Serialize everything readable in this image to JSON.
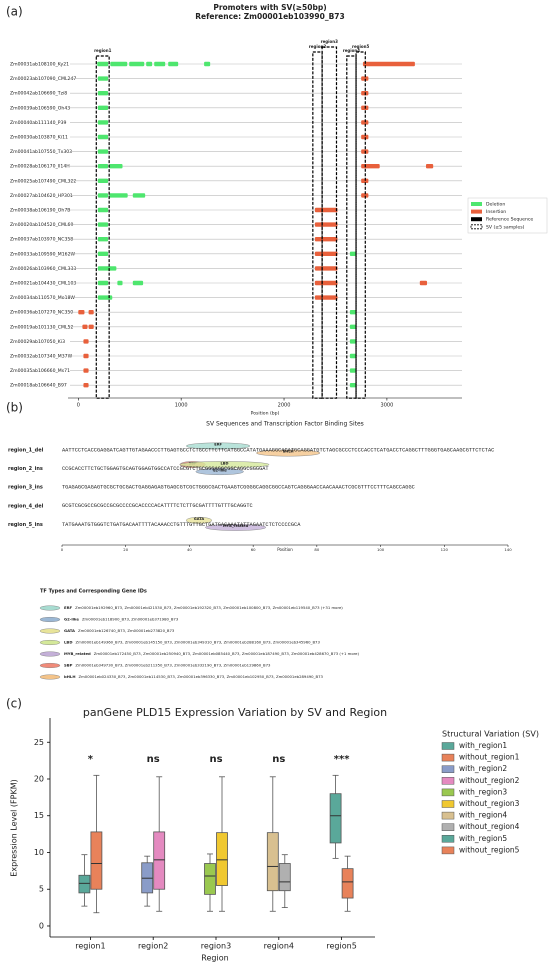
{
  "panel_labels": [
    "(a)",
    "(b)",
    "(c)"
  ],
  "chart_data": [
    {
      "type": "sv-tracks",
      "title": "Promoters with SV(≥50bp)",
      "subtitle": "Reference: Zm00001eb103990_B73",
      "xlabel": "Position (bp)",
      "xlim": [
        -100,
        3730
      ],
      "xticks": [
        0,
        1000,
        2000,
        3000
      ],
      "deletion_color": "#4ee66e",
      "insertion_color": "#e8603c",
      "legend": [
        "Deletion",
        "Insertion",
        "Reference Sequence",
        "SV (≥5 samples)"
      ],
      "regions": [
        {
          "label": "region1",
          "start": 175,
          "end": 300
        },
        {
          "label": "region2",
          "start": 2280,
          "end": 2370
        },
        {
          "label": "region3",
          "start": 2370,
          "end": 2510
        },
        {
          "label": "region4",
          "start": 2610,
          "end": 2700
        },
        {
          "label": "region5",
          "start": 2700,
          "end": 2790
        }
      ],
      "rows": [
        {
          "name": "Zm00031ab108100_Ky21",
          "deletions": [
            [
              184,
              291
            ],
            [
              311,
              476
            ],
            [
              495,
              641
            ],
            [
              660,
              718
            ],
            [
              738,
              845
            ],
            [
              874,
              971
            ],
            [
              1223,
              1282
            ]
          ],
          "insertions": [
            [
              2767,
              3272
            ]
          ]
        },
        {
          "name": "Zm00023ab107090_CML247",
          "deletions": [
            [
              190,
              290
            ]
          ],
          "insertions": [
            [
              2750,
              2820
            ]
          ]
        },
        {
          "name": "Zm00042ab106690_Tzi8",
          "deletions": [
            [
              190,
              290
            ]
          ],
          "insertions": [
            [
              2750,
              2820
            ]
          ]
        },
        {
          "name": "Zm00039ab106590_Oh43",
          "deletions": [
            [
              190,
              290
            ]
          ],
          "insertions": [
            [
              2750,
              2820
            ]
          ]
        },
        {
          "name": "Zm00040ab111140_P39",
          "deletions": [
            [
              190,
              290
            ]
          ],
          "insertions": [
            [
              2750,
              2820
            ]
          ]
        },
        {
          "name": "Zm00030ab103870_Ki11",
          "deletions": [
            [
              190,
              290
            ]
          ],
          "insertions": [
            [
              2750,
              2820
            ]
          ]
        },
        {
          "name": "Zm00041ab107550_Tx303",
          "deletions": [
            [
              190,
              290
            ]
          ],
          "insertions": [
            [
              2750,
              2820
            ]
          ]
        },
        {
          "name": "Zm00028ab106170_Il14H",
          "deletions": [
            [
              190,
              290
            ],
            [
              300,
              430
            ]
          ],
          "insertions": [
            [
              2750,
              2930
            ],
            [
              3380,
              3450
            ]
          ]
        },
        {
          "name": "Zm00025ab107490_CML322",
          "deletions": [
            [
              190,
              290
            ]
          ],
          "insertions": [
            [
              2750,
              2820
            ]
          ]
        },
        {
          "name": "Zm00027ab104620_HP301",
          "deletions": [
            [
              190,
              290
            ],
            [
              300,
              480
            ],
            [
              530,
              650
            ]
          ],
          "insertions": [
            [
              2750,
              2820
            ]
          ]
        },
        {
          "name": "Zm00038ab106190_Oh7B",
          "deletions": [
            [
              190,
              290
            ]
          ],
          "insertions": [
            [
              2300,
              2520
            ]
          ]
        },
        {
          "name": "Zm00020ab104520_CML69",
          "deletions": [
            [
              190,
              290
            ]
          ],
          "insertions": [
            [
              2300,
              2520
            ]
          ]
        },
        {
          "name": "Zm00037ab103970_NC358",
          "deletions": [
            [
              190,
              290
            ]
          ],
          "insertions": [
            [
              2300,
              2520
            ]
          ]
        },
        {
          "name": "Zm00033ab109590_M162W",
          "deletions": [
            [
              190,
              290
            ],
            [
              2640,
              2700
            ]
          ],
          "insertions": [
            [
              2300,
              2520
            ]
          ]
        },
        {
          "name": "Zm00026ab103960_CML333",
          "deletions": [
            [
              190,
              370
            ]
          ],
          "insertions": [
            [
              2300,
              2520
            ]
          ]
        },
        {
          "name": "Zm00021ab104430_CML103",
          "deletions": [
            [
              190,
              290
            ],
            [
              380,
              430
            ],
            [
              530,
              630
            ]
          ],
          "insertions": [
            [
              2300,
              2520
            ],
            [
              3320,
              3390
            ]
          ]
        },
        {
          "name": "Zm00034ab110570_Mo18W",
          "deletions": [
            [
              190,
              330
            ]
          ],
          "insertions": [
            [
              2300,
              2520
            ]
          ]
        },
        {
          "name": "Zm00036ab107270_NC350",
          "deletions": [
            [
              2640,
              2700
            ]
          ],
          "insertions": [
            [
              0,
              60
            ],
            [
              100,
              150
            ]
          ]
        },
        {
          "name": "Zm00019ab101130_CML52",
          "deletions": [
            [
              2640,
              2700
            ]
          ],
          "insertions": [
            [
              40,
              90
            ],
            [
              100,
              150
            ]
          ]
        },
        {
          "name": "Zm00029ab107050_Ki3",
          "deletions": [
            [
              2640,
              2700
            ]
          ],
          "insertions": [
            [
              50,
              100
            ]
          ]
        },
        {
          "name": "Zm00032ab107340_M37W",
          "deletions": [
            [
              2640,
              2700
            ]
          ],
          "insertions": [
            [
              50,
              100
            ]
          ]
        },
        {
          "name": "Zm00035ab106660_Ms71",
          "deletions": [
            [
              2640,
              2700
            ]
          ],
          "insertions": [
            [
              50,
              100
            ]
          ]
        },
        {
          "name": "Zm00018ab106640_B97",
          "deletions": [
            [
              2640,
              2700
            ]
          ],
          "insertions": [
            [
              50,
              100
            ]
          ]
        }
      ]
    },
    {
      "type": "box",
      "title": "panGene PLD15 Expression Variation by SV and Region",
      "xlabel": "Region",
      "ylabel": "Expression Level (FPKM)",
      "ylim": [
        -1.5,
        28.3
      ],
      "yticks": [
        0,
        5,
        10,
        15,
        20,
        25
      ],
      "legend_title": "Structural Variation (SV)",
      "groups": [
        {
          "category": "region1",
          "significance": "*",
          "boxes": [
            {
              "name": "with_region1",
              "color": "#5aa89a",
              "min": 2.7,
              "q1": 4.5,
              "median": 5.8,
              "q3": 6.9,
              "max": 9.7
            },
            {
              "name": "without_region1",
              "color": "#e8825a",
              "min": 1.8,
              "q1": 5,
              "median": 8.5,
              "q3": 12.8,
              "max": 20.5
            }
          ]
        },
        {
          "category": "region2",
          "significance": "ns",
          "boxes": [
            {
              "name": "with_region2",
              "color": "#8a9cc8",
              "min": 2.7,
              "q1": 4.5,
              "median": 6.5,
              "q3": 8.6,
              "max": 9.5
            },
            {
              "name": "without_region2",
              "color": "#e48ac0",
              "min": 2,
              "q1": 5,
              "median": 9,
              "q3": 12.8,
              "max": 20.3
            }
          ]
        },
        {
          "category": "region3",
          "significance": "ns",
          "boxes": [
            {
              "name": "with_region3",
              "color": "#9ac850",
              "min": 2,
              "q1": 4.3,
              "median": 6.8,
              "q3": 8.5,
              "max": 9.8
            },
            {
              "name": "without_region3",
              "color": "#f0c830",
              "min": 2,
              "q1": 5.5,
              "median": 9,
              "q3": 12.7,
              "max": 20.3
            }
          ]
        },
        {
          "category": "region4",
          "significance": "ns",
          "boxes": [
            {
              "name": "with_region4",
              "color": "#d8c090",
              "min": 2,
              "q1": 4.8,
              "median": 8.1,
              "q3": 12.7,
              "max": 20.3
            },
            {
              "name": "without_region4",
              "color": "#b0b0b0",
              "min": 2.5,
              "q1": 4.8,
              "median": 6,
              "q3": 8.5,
              "max": 9.7
            }
          ]
        },
        {
          "category": "region5",
          "significance": "***",
          "boxes": [
            {
              "name": "with_region5",
              "color": "#5aa89a",
              "min": 9.2,
              "q1": 11.3,
              "median": 15,
              "q3": 18,
              "max": 20.5
            },
            {
              "name": "without_region5",
              "color": "#e8825a",
              "min": 2,
              "q1": 3.8,
              "median": 6,
              "q3": 7.8,
              "max": 9.5
            }
          ]
        }
      ]
    }
  ],
  "sequence_panel": {
    "title": "SV Sequences and Transcription Factor Binding Sites",
    "xlabel": "Position",
    "xlim": [
      0,
      140
    ],
    "xticks": [
      0,
      20,
      40,
      60,
      80,
      100,
      120,
      140
    ],
    "rows": [
      {
        "label": "region_1_del",
        "sequence": "AATTCCTCACCGAGGATCAGTTGTAGAACCCTTGAGTGCCTCTGCCTTCTTCATGGCCATATGAAAGGCACATGCAGGATGTCTAGCGCCCTCCCACCTCATGACCTCAGGCTTTGGGTGAGCAAGCGTTCTCTAC",
        "motifs": [
          {
            "tf": "ERF",
            "start": 39,
            "end": 59
          },
          {
            "tf": "bHLH",
            "start": 61,
            "end": 81
          }
        ]
      },
      {
        "label": "region_2_ins",
        "sequence": "CCGCACCTTCTGCTGGAGTGCAGTGGAGTGGCCATCCGCGTCTGCGGGAGGCGGCAGGCGGGGAT",
        "motifs": [
          {
            "tf": "SBP",
            "start": 37,
            "end": 45
          },
          {
            "tf": "G2-like",
            "start": 42,
            "end": 57
          },
          {
            "tf": "LBD",
            "start": 37,
            "end": 65
          }
        ]
      },
      {
        "label": "region_3_ins",
        "sequence": "TGAGAGCGAGAGTGCGCTGCGACTGAGGAGAGTGAGCGTCGCTGGGCGACTGAAGTCGGGGCAGGCGGCCAGTCAGGGAACCAACAAACTCGCGTTTCCTTTCAGCCAGGC",
        "motifs": []
      },
      {
        "label": "region_4_del",
        "sequence": "GCGTCGCGCCGCGCCGCGCCCCGCACCCCACATTTTCTCTTGCGATTTTGTTTGCAGGTC",
        "motifs": []
      },
      {
        "label": "region_5_ins",
        "sequence": "TATGAAATGTGGGTCTGATGACAATTTTACAAACCTGTTTGTTGCTGATGACAAATATTAGAATCTCTCCCCGCA",
        "motifs": [
          {
            "tf": "GATA",
            "start": 39,
            "end": 47
          },
          {
            "tf": "MYB_related",
            "start": 45,
            "end": 64
          }
        ]
      }
    ],
    "legend_title": "TF Types and Corresponding Gene IDs",
    "tf_types": [
      {
        "tf": "ERF",
        "color": "#a8dcd1",
        "genes": "Zm00001eb192960_B73, Zm00001eb421530_B73, Zm00001eb192320_B73, Zm00001eb100800_B73, Zm00001eb119540_B73 (+31 more)"
      },
      {
        "tf": "G2-like",
        "color": "#9bb7d4",
        "genes": "Zm00001eb118900_B73, Zm00001eb371980_B73"
      },
      {
        "tf": "GATA",
        "color": "#e8e49a",
        "genes": "Zm00001eb126740_B73, Zm00001eb273820_B73"
      },
      {
        "tf": "LBD",
        "color": "#d4e89a",
        "genes": "Zm00001eb149360_B73, Zm00001eb145150_B73, Zm00001eb349310_B73, Zm00001eb288160_B73, Zm00001eb345960_B73"
      },
      {
        "tf": "MYB_related",
        "color": "#c4b0d8",
        "genes": "Zm00001eb172450_B73, Zm00001eb250940_B73, Zm00001eb085440_B73, Zm00001eb187490_B73, Zm00001eb428670_B73 (+1 more)"
      },
      {
        "tf": "SBP",
        "color": "#f08b7a",
        "genes": "Zm00001eb349730_B73, Zm00001eb211350_B73, Zm00001eb332190_B73, Zm00001eb129860_B73"
      },
      {
        "tf": "bHLH",
        "color": "#f4c48a",
        "genes": "Zm00001eb024330_B73, Zm00001eb114530_B73, Zm00001eb396330_B73, Zm00001eb102950_B73, Zm00001eb289490_B73"
      }
    ]
  }
}
